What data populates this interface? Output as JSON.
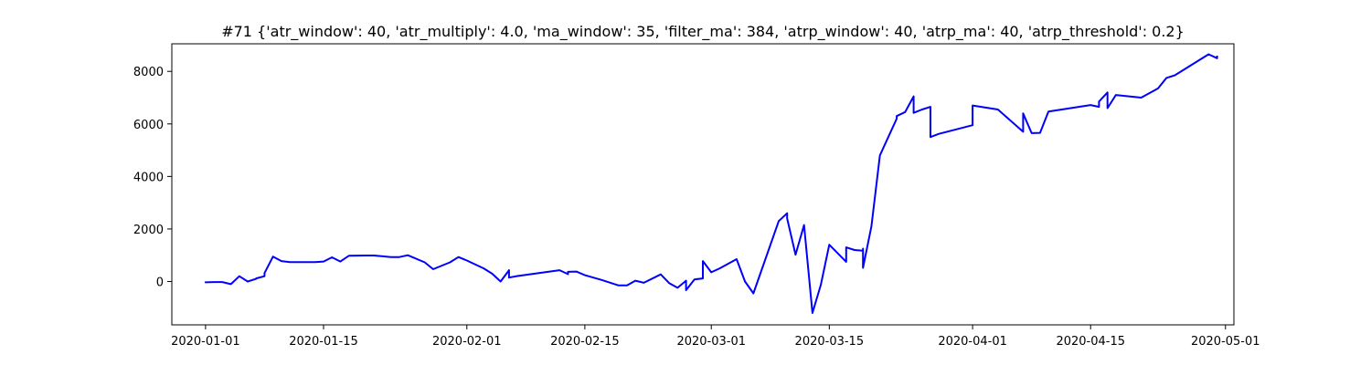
{
  "chart_data": {
    "type": "line",
    "title": "#71 {'atr_window': 40, 'atr_multiply': 4.0, 'ma_window': 35, 'filter_ma': 384, 'atrp_window': 40, 'atrp_ma': 40, 'atrp_threshold': 0.2}",
    "xlabel": "",
    "ylabel": "",
    "x_type": "date",
    "xlim": [
      "2019-12-28",
      "2020-05-02"
    ],
    "ylim": [
      -1650,
      9050
    ],
    "x_ticks": [
      "2020-01-01",
      "2020-01-15",
      "2020-02-01",
      "2020-02-15",
      "2020-03-01",
      "2020-03-15",
      "2020-04-01",
      "2020-04-15",
      "2020-05-01"
    ],
    "y_ticks": [
      0,
      2000,
      4000,
      6000,
      8000
    ],
    "grid": false,
    "color": "#0000ff",
    "series": [
      {
        "x": [
          "2020-01-01",
          "2020-01-01",
          "2020-01-02",
          "2020-01-03",
          "2020-01-04",
          "2020-01-05",
          "2020-01-06",
          "2020-01-07",
          "2020-01-07",
          "2020-01-08",
          "2020-01-08",
          "2020-01-09",
          "2020-01-10",
          "2020-01-11",
          "2020-01-14",
          "2020-01-15",
          "2020-01-16",
          "2020-01-16",
          "2020-01-17",
          "2020-01-18",
          "2020-01-20",
          "2020-01-21",
          "2020-01-23",
          "2020-01-24",
          "2020-01-25",
          "2020-01-27",
          "2020-01-28",
          "2020-01-30",
          "2020-01-31",
          "2020-02-01",
          "2020-02-03",
          "2020-02-04",
          "2020-02-05",
          "2020-02-06",
          "2020-02-06",
          "2020-02-07",
          "2020-02-12",
          "2020-02-13",
          "2020-02-13",
          "2020-02-14",
          "2020-02-15",
          "2020-02-17",
          "2020-02-19",
          "2020-02-20",
          "2020-02-21",
          "2020-02-22",
          "2020-02-24",
          "2020-02-25",
          "2020-02-26",
          "2020-02-27",
          "2020-02-27",
          "2020-02-28",
          "2020-02-28",
          "2020-02-29",
          "2020-02-29",
          "2020-03-01",
          "2020-03-02",
          "2020-03-04",
          "2020-03-05",
          "2020-03-06",
          "2020-03-09",
          "2020-03-10",
          "2020-03-10",
          "2020-03-11",
          "2020-03-12",
          "2020-03-13",
          "2020-03-14",
          "2020-03-15",
          "2020-03-17",
          "2020-03-17",
          "2020-03-18",
          "2020-03-19",
          "2020-03-19",
          "2020-03-19",
          "2020-03-20",
          "2020-03-21",
          "2020-03-23",
          "2020-03-23",
          "2020-03-24",
          "2020-03-25",
          "2020-03-25",
          "2020-03-26",
          "2020-03-27",
          "2020-03-27",
          "2020-03-28",
          "2020-04-01",
          "2020-04-01",
          "2020-04-04",
          "2020-04-07",
          "2020-04-07",
          "2020-04-08",
          "2020-04-09",
          "2020-04-10",
          "2020-04-15",
          "2020-04-16",
          "2020-04-16",
          "2020-04-17",
          "2020-04-17",
          "2020-04-18",
          "2020-04-21",
          "2020-04-23",
          "2020-04-24",
          "2020-04-25",
          "2020-04-29",
          "2020-04-30",
          "2020-04-30"
        ],
        "y": [
          0,
          -30,
          -20,
          -20,
          -100,
          200,
          0,
          100,
          120,
          200,
          320,
          950,
          780,
          740,
          740,
          760,
          920,
          920,
          760,
          980,
          990,
          990,
          930,
          930,
          1000,
          730,
          470,
          730,
          930,
          800,
          500,
          300,
          0,
          430,
          150,
          210,
          430,
          280,
          370,
          380,
          240,
          60,
          -150,
          -150,
          30,
          -50,
          270,
          -60,
          -240,
          30,
          -330,
          80,
          80,
          120,
          780,
          350,
          500,
          850,
          0,
          -450,
          2300,
          2600,
          2400,
          1020,
          2150,
          -1200,
          -120,
          1400,
          750,
          1300,
          1200,
          1170,
          1250,
          520,
          2100,
          4800,
          6200,
          6300,
          6450,
          7050,
          6420,
          6550,
          6650,
          5500,
          5620,
          5950,
          6700,
          6550,
          5700,
          6400,
          5650,
          5660,
          6470,
          6720,
          6650,
          6850,
          7200,
          6600,
          7100,
          7000,
          7350,
          7750,
          7850,
          8650,
          8500,
          8600
        ]
      }
    ]
  }
}
